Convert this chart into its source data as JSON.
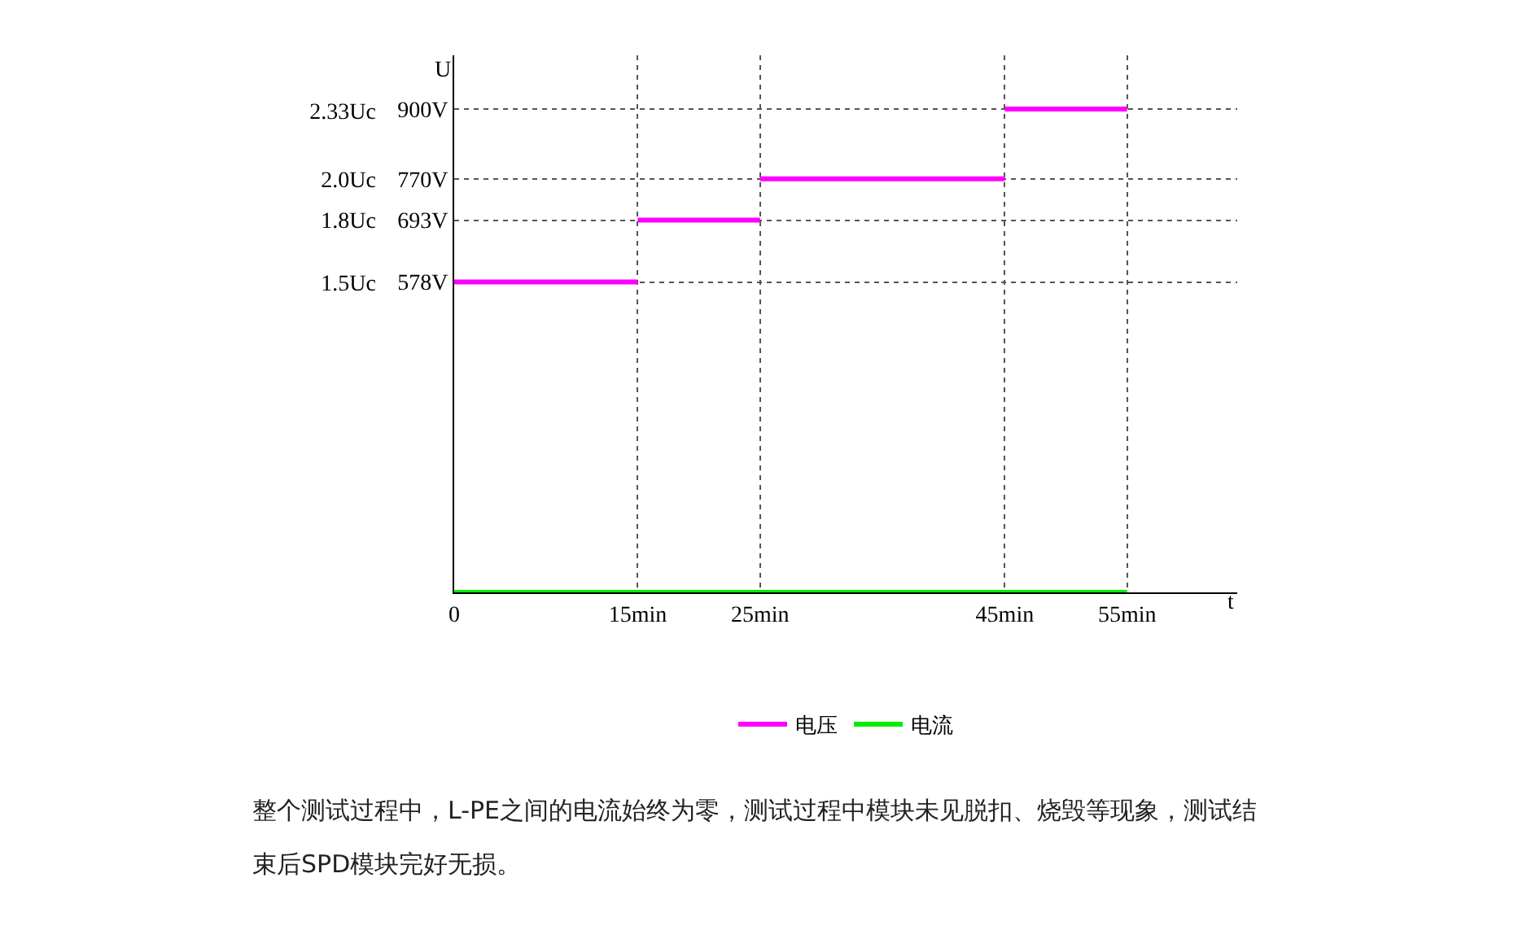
{
  "chart_data": {
    "type": "line",
    "xlabel": "t",
    "ylabel": "U",
    "series": [
      {
        "name": "电压",
        "color": "#ff00ff",
        "x": [
          0,
          15,
          null,
          15,
          25,
          null,
          25,
          45,
          null,
          45,
          55
        ],
        "values": [
          578,
          578,
          null,
          693,
          693,
          null,
          770,
          770,
          null,
          900,
          900
        ]
      },
      {
        "name": "电流",
        "color": "#00ee00",
        "x": [
          0,
          55
        ],
        "values": [
          0,
          0
        ]
      }
    ],
    "xlim": [
      0,
      64
    ],
    "xticks": [
      0,
      {
        "value": 15,
        "label": "15min"
      },
      {
        "value": 25,
        "label": "25min"
      },
      {
        "value": 45,
        "label": "45min"
      },
      {
        "value": 55,
        "label": "55min"
      }
    ],
    "ylim": [
      0,
      1000
    ],
    "yticks": [
      {
        "value": 578,
        "label": "578V"
      },
      {
        "value": 693,
        "label": "693V"
      },
      {
        "value": 770,
        "label": "770V"
      },
      {
        "value": 900,
        "label": "900V"
      }
    ],
    "y2lim": [
      0,
      2.597
    ],
    "y2ticks": [
      {
        "value": 1.5,
        "label": "1.5Uc"
      },
      {
        "value": 1.8,
        "label": "1.8Uc"
      },
      {
        "value": 2.0,
        "label": "2.0Uc"
      },
      {
        "value": 2.33,
        "label": "2.33Uc"
      }
    ],
    "grid": true,
    "legend": "bottom",
    "marker": "none",
    "line_style": "solid",
    "annotations": [
      "整个测试过程中，L-PE之间的电流始终为零，测试过程中模块未见脱扣、烧毁等现象，测试结束后SPD模块完好无损。"
    ]
  }
}
